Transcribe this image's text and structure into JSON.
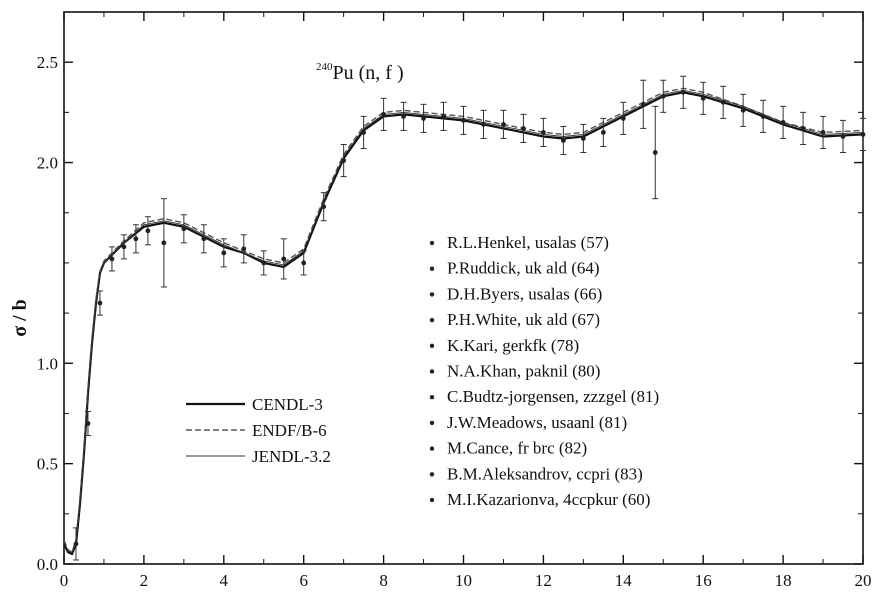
{
  "chart_data": {
    "type": "line",
    "title": "Pu (n, f )",
    "title_superscript": "240",
    "xlabel": "",
    "ylabel": "σ / b",
    "xlim": [
      0,
      20
    ],
    "ylim": [
      0,
      2.75
    ],
    "x_ticks": [
      0,
      2,
      4,
      6,
      8,
      10,
      12,
      14,
      16,
      18,
      20
    ],
    "y_ticks": [
      {
        "value": 0.0,
        "label": "0.0"
      },
      {
        "value": 0.5,
        "label": "0.5"
      },
      {
        "value": 1.0,
        "label": "1.0"
      },
      {
        "value": 2.0,
        "label": "2.0"
      },
      {
        "value": 2.5,
        "label": "2.5"
      }
    ],
    "grid": false,
    "curve_x": [
      0,
      0.1,
      0.2,
      0.3,
      0.4,
      0.5,
      0.6,
      0.7,
      0.8,
      0.9,
      1.0,
      1.5,
      2.0,
      2.5,
      3.0,
      3.5,
      4.0,
      4.5,
      5.0,
      5.5,
      6.0,
      6.5,
      7.0,
      7.5,
      8.0,
      8.5,
      9.0,
      10.0,
      11.0,
      12.0,
      12.5,
      13.0,
      14.0,
      15.0,
      15.5,
      16.0,
      17.0,
      18.0,
      19.0,
      20.0
    ],
    "series": [
      {
        "name": "CENDL-3",
        "style": "solid",
        "color": "#111111",
        "values": [
          0.1,
          0.06,
          0.05,
          0.1,
          0.3,
          0.55,
          0.85,
          1.1,
          1.3,
          1.45,
          1.5,
          1.6,
          1.68,
          1.7,
          1.68,
          1.63,
          1.58,
          1.55,
          1.5,
          1.48,
          1.55,
          1.8,
          2.02,
          2.16,
          2.23,
          2.24,
          2.23,
          2.21,
          2.17,
          2.13,
          2.12,
          2.13,
          2.23,
          2.33,
          2.35,
          2.33,
          2.27,
          2.19,
          2.13,
          2.14
        ]
      },
      {
        "name": "ENDF/B-6",
        "style": "dashed",
        "color": "#555555",
        "values": [
          0.12,
          0.07,
          0.06,
          0.12,
          0.32,
          0.57,
          0.87,
          1.12,
          1.32,
          1.46,
          1.51,
          1.61,
          1.7,
          1.72,
          1.7,
          1.65,
          1.6,
          1.56,
          1.52,
          1.5,
          1.57,
          1.82,
          2.04,
          2.18,
          2.25,
          2.26,
          2.25,
          2.23,
          2.19,
          2.15,
          2.14,
          2.15,
          2.25,
          2.35,
          2.37,
          2.35,
          2.28,
          2.2,
          2.15,
          2.16
        ]
      },
      {
        "name": "JENDL-3.2",
        "style": "thin",
        "color": "#333333",
        "values": [
          0.11,
          0.065,
          0.055,
          0.11,
          0.31,
          0.56,
          0.86,
          1.11,
          1.31,
          1.45,
          1.5,
          1.6,
          1.69,
          1.71,
          1.69,
          1.64,
          1.59,
          1.55,
          1.51,
          1.49,
          1.56,
          1.81,
          2.03,
          2.17,
          2.24,
          2.25,
          2.24,
          2.22,
          2.18,
          2.14,
          2.13,
          2.14,
          2.24,
          2.34,
          2.36,
          2.34,
          2.28,
          2.2,
          2.14,
          2.15
        ]
      }
    ],
    "experimental": {
      "x": [
        0.3,
        0.6,
        0.9,
        1.2,
        1.5,
        1.8,
        2.1,
        2.5,
        3.0,
        3.5,
        4.0,
        4.5,
        5.0,
        5.5,
        6.0,
        6.5,
        7.0,
        7.5,
        8.0,
        8.5,
        9.0,
        9.5,
        10.0,
        10.5,
        11.0,
        11.5,
        12.0,
        12.5,
        13.0,
        13.5,
        14.0,
        14.5,
        14.8,
        15.0,
        15.5,
        16.0,
        16.5,
        17.0,
        17.5,
        18.0,
        18.5,
        19.0,
        19.5,
        20.0
      ],
      "y": [
        0.1,
        0.7,
        1.3,
        1.52,
        1.58,
        1.62,
        1.66,
        1.6,
        1.67,
        1.62,
        1.55,
        1.57,
        1.5,
        1.52,
        1.5,
        1.78,
        2.01,
        2.15,
        2.24,
        2.23,
        2.22,
        2.23,
        2.21,
        2.19,
        2.19,
        2.17,
        2.15,
        2.11,
        2.12,
        2.15,
        2.22,
        2.29,
        2.05,
        2.33,
        2.35,
        2.32,
        2.3,
        2.26,
        2.23,
        2.2,
        2.17,
        2.15,
        2.13,
        2.14
      ],
      "err": [
        0.08,
        0.06,
        0.06,
        0.06,
        0.06,
        0.07,
        0.07,
        0.22,
        0.07,
        0.07,
        0.07,
        0.07,
        0.06,
        0.1,
        0.06,
        0.07,
        0.08,
        0.08,
        0.08,
        0.07,
        0.07,
        0.07,
        0.07,
        0.07,
        0.07,
        0.07,
        0.07,
        0.07,
        0.07,
        0.07,
        0.08,
        0.12,
        0.23,
        0.08,
        0.08,
        0.08,
        0.08,
        0.08,
        0.08,
        0.08,
        0.08,
        0.08,
        0.08,
        0.08
      ]
    },
    "legend_lines": {
      "placement": "lower-left",
      "entries": [
        "CENDL-3",
        "ENDF/B-6",
        "JENDL-3.2"
      ]
    },
    "legend_data": {
      "placement": "right",
      "entries": [
        "R.L.Henkel, usalas (57)",
        "P.Ruddick, uk ald (64)",
        "D.H.Byers, usalas (66)",
        "P.H.White, uk ald (67)",
        "K.Kari, gerkfk (78)",
        "N.A.Khan, paknil (80)",
        "C.Budtz-jorgensen, zzzgel (81)",
        "J.W.Meadows, usaanl (81)",
        "M.Cance, fr brc (82)",
        "B.M.Aleksandrov, ccpri (83)",
        "M.I.Kazarionva, 4ccpkur (60)"
      ]
    }
  }
}
